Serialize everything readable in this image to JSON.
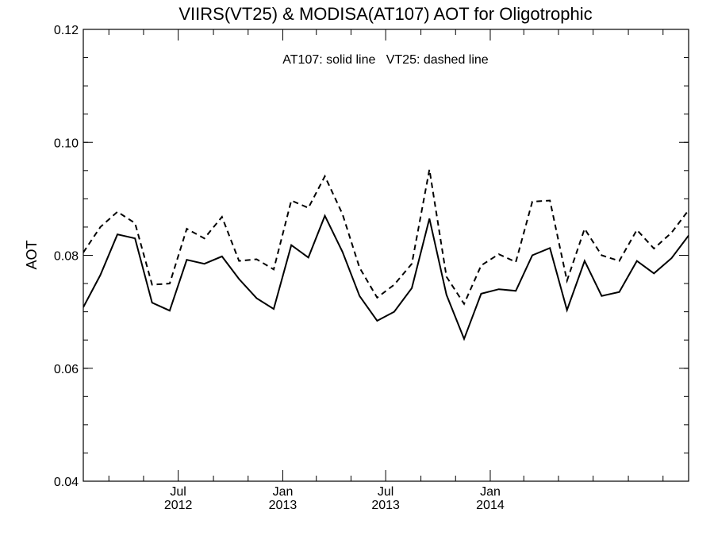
{
  "chart_data": {
    "type": "line",
    "title": "VIIRS(VT25) & MODISA(AT107)  AOT for Oligotrophic",
    "annotation": "AT107: solid line   VT25: dashed line",
    "xlabel": "",
    "ylabel": "AOT",
    "xlim": [
      "2012-01-16",
      "2014-12-16"
    ],
    "ylim": [
      0.04,
      0.12
    ],
    "y_ticks": [
      {
        "value": 0.04,
        "label": "0.04"
      },
      {
        "value": 0.06,
        "label": "0.06"
      },
      {
        "value": 0.08,
        "label": "0.08"
      },
      {
        "value": 0.1,
        "label": "0.10"
      },
      {
        "value": 0.12,
        "label": "0.12"
      }
    ],
    "y_minor_step": 0.005,
    "x_ticks": [
      {
        "date": "2012-07-01",
        "line1": "Jul",
        "line2": "2012"
      },
      {
        "date": "2013-01-01",
        "line1": "Jan",
        "line2": "2013"
      },
      {
        "date": "2013-07-01",
        "line1": "Jul",
        "line2": "2013"
      },
      {
        "date": "2014-01-01",
        "line1": "Jan",
        "line2": "2014"
      }
    ],
    "x_minor_ticks": [
      "2012-03-01",
      "2012-05-01",
      "2012-09-01",
      "2012-11-01",
      "2013-03-01",
      "2013-05-01",
      "2013-09-01",
      "2013-11-01",
      "2014-03-01",
      "2014-05-01",
      "2014-07-01",
      "2014-09-01",
      "2014-11-01"
    ],
    "x": [
      "2012-01-16",
      "2012-02-15",
      "2012-03-16",
      "2012-04-16",
      "2012-05-16",
      "2012-06-16",
      "2012-07-16",
      "2012-08-16",
      "2012-09-16",
      "2012-10-16",
      "2012-11-16",
      "2012-12-16",
      "2013-01-16",
      "2013-02-15",
      "2013-03-16",
      "2013-04-16",
      "2013-05-16",
      "2013-06-16",
      "2013-07-16",
      "2013-08-16",
      "2013-09-16",
      "2013-10-16",
      "2013-11-16",
      "2013-12-16",
      "2014-01-16",
      "2014-02-15",
      "2014-03-16",
      "2014-04-16",
      "2014-05-16",
      "2014-06-16",
      "2014-07-16",
      "2014-08-16",
      "2014-09-16",
      "2014-10-16",
      "2014-11-16",
      "2014-12-16"
    ],
    "series": [
      {
        "id": "AT107",
        "style": "solid",
        "color": "#000000",
        "values": [
          0.0708,
          0.0765,
          0.0837,
          0.083,
          0.0716,
          0.0702,
          0.0792,
          0.0785,
          0.0798,
          0.0758,
          0.0724,
          0.0705,
          0.0818,
          0.0796,
          0.087,
          0.0806,
          0.0728,
          0.0684,
          0.07,
          0.0742,
          0.0865,
          0.073,
          0.0652,
          0.0732,
          0.074,
          0.0737,
          0.08,
          0.0813,
          0.0703,
          0.079,
          0.0728,
          0.0735,
          0.079,
          0.0768,
          0.0795,
          0.0835
        ]
      },
      {
        "id": "VT25",
        "style": "dashed",
        "color": "#000000",
        "values": [
          0.0805,
          0.085,
          0.0877,
          0.0857,
          0.0748,
          0.075,
          0.0847,
          0.083,
          0.0868,
          0.079,
          0.0793,
          0.0775,
          0.0897,
          0.0884,
          0.094,
          0.0873,
          0.0778,
          0.0725,
          0.0748,
          0.0785,
          0.0952,
          0.0762,
          0.0714,
          0.0782,
          0.0802,
          0.0788,
          0.0895,
          0.0897,
          0.0755,
          0.0847,
          0.08,
          0.079,
          0.0845,
          0.0812,
          0.084,
          0.088
        ]
      }
    ]
  }
}
